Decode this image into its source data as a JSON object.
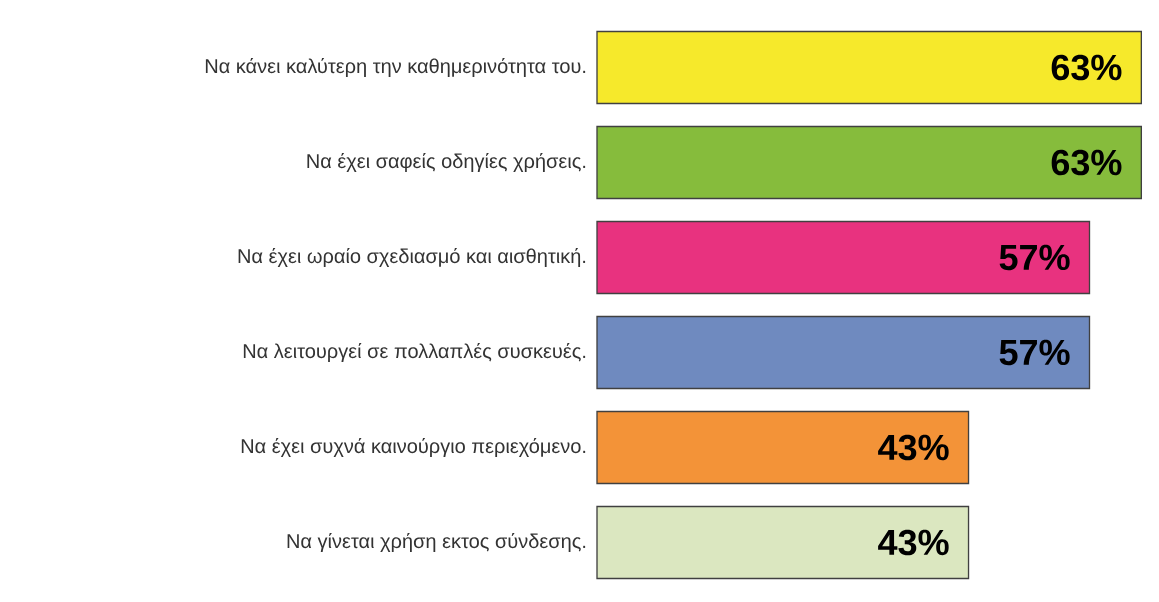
{
  "chart_data": {
    "type": "bar",
    "orientation": "horizontal",
    "categories": [
      "Να κάνει καλύτερη την καθημερινότητα του.",
      "Να έχει σαφείς οδηγίες χρήσεις.",
      "Να έχει ωραίο σχεδιασμό και αισθητική.",
      "Να λειτουργεί σε πολλαπλές συσκευές.",
      "Να έχει συχνά καινούργιο περιεχόμενο.",
      "Να γίνεται χρήση εκτος σύνδεσης."
    ],
    "values": [
      63,
      63,
      57,
      57,
      43,
      43
    ],
    "value_labels": [
      "63%",
      "63%",
      "57%",
      "57%",
      "43%",
      "43%"
    ],
    "colors": [
      "#f6e92b",
      "#86bc3c",
      "#e8327f",
      "#6f8abf",
      "#f39338",
      "#dbe7c0"
    ]
  }
}
